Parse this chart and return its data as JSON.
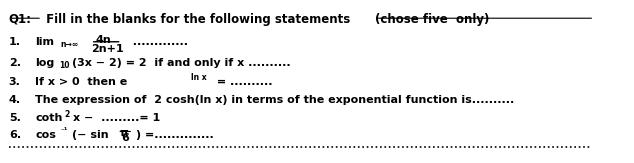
{
  "bg_color": "#ffffff",
  "text_color": "#000000",
  "fs_title": 8.5,
  "fs_body": 8.0,
  "fs_small": 5.5,
  "title_q1": "Q1:",
  "title_main": " Fill in the blanks for the following statements  ",
  "title_paren": "(chose five  only)",
  "line1_num": "1.",
  "line1_lim": "lim",
  "line1_sub": "n→∞",
  "line1_num_text": "4n",
  "line1_den_text": "2n+1",
  "line1_dots": "  .............",
  "line2_num": "2.",
  "line2_log": "log",
  "line2_sub": "10",
  "line2_rest": "(3x − 2) = 2  if and only if x ..........",
  "line3_num": "3.",
  "line3_text": "If x > 0  then e",
  "line3_sup": "ln x",
  "line3_rest": " = ..........",
  "line4_num": "4.",
  "line4_text": "The expression of  2 cosh(ln x) in terms of the exponential function is..........",
  "line5_num": "5.",
  "line5_coth": "coth",
  "line5_sup": "2",
  "line5_rest": "x −  .........= 1",
  "line6_num": "6.",
  "line6_cos": "cos",
  "line6_sup": "⁻¹",
  "line6_sin": "(− sin",
  "line6_pi": "π",
  "line6_denom": "6",
  "line6_rest": ") =.............."
}
